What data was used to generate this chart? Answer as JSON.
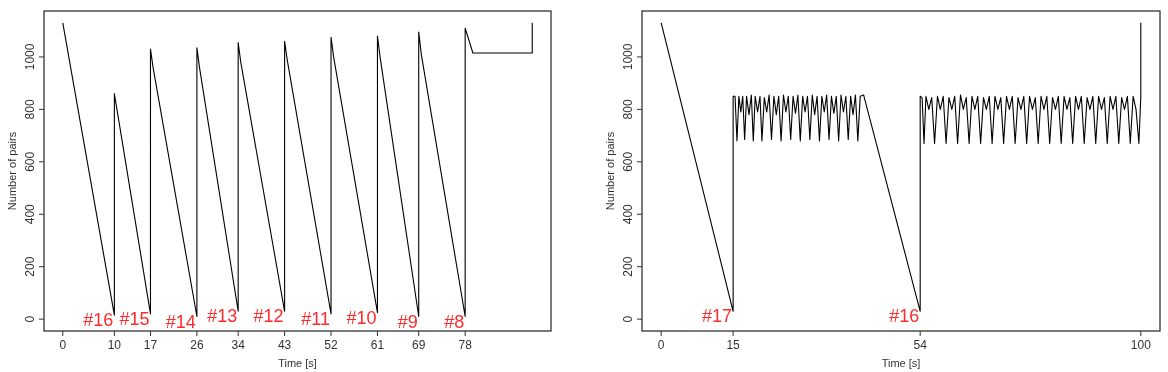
{
  "chart_data": [
    {
      "type": "line",
      "xlabel": "Time [s]",
      "ylabel": "Number of pairs",
      "xlim": [
        -3.64,
        94.64
      ],
      "ylim": [
        -45.2,
        1175.2
      ],
      "xticks": [
        0,
        10,
        17,
        26,
        34,
        43,
        52,
        61,
        69,
        78
      ],
      "yticks": [
        0,
        200,
        400,
        600,
        800,
        1000
      ],
      "series": [
        {
          "color": "#000000",
          "x": [
            0,
            10,
            10,
            10.5,
            17,
            17,
            17.5,
            26,
            26,
            26.5,
            34,
            34,
            34.5,
            43,
            43,
            43.5,
            52,
            52,
            52.5,
            61,
            61,
            61.5,
            69,
            69,
            69.5,
            78,
            78,
            79.5,
            91,
            91
          ],
          "values": [
            1130,
            15,
            860,
            800,
            20,
            1030,
            960,
            10,
            1035,
            960,
            30,
            1055,
            980,
            30,
            1060,
            990,
            20,
            1075,
            1000,
            25,
            1080,
            1000,
            10,
            1095,
            1010,
            10,
            1110,
            1015,
            1015,
            1130
          ]
        }
      ],
      "annotations": [
        {
          "text": "#16",
          "x": 10,
          "y": 15
        },
        {
          "text": "#15",
          "x": 17,
          "y": 20
        },
        {
          "text": "#14",
          "x": 26,
          "y": 10
        },
        {
          "text": "#13",
          "x": 34,
          "y": 30
        },
        {
          "text": "#12",
          "x": 43,
          "y": 30
        },
        {
          "text": "#11",
          "x": 52,
          "y": 20
        },
        {
          "text": "#10",
          "x": 61,
          "y": 25
        },
        {
          "text": "#9",
          "x": 69,
          "y": 10
        },
        {
          "text": "#8",
          "x": 78,
          "y": 10
        }
      ]
    },
    {
      "type": "line",
      "xlabel": "Time [s]",
      "ylabel": "Number of pairs",
      "xlim": [
        -4,
        104
      ],
      "ylim": [
        -45.2,
        1175.2
      ],
      "xticks": [
        0,
        15,
        54,
        100
      ],
      "yticks": [
        0,
        200,
        400,
        600,
        800,
        1000
      ],
      "series": [
        {
          "color": "#000000",
          "x": [
            0,
            15,
            15,
            15.4,
            15.8,
            16.2,
            16.6,
            17,
            17.4,
            17.8,
            18.3,
            18.8,
            19.2,
            19.6,
            20.1,
            20.6,
            21,
            21.5,
            22,
            22.5,
            23,
            23.5,
            24,
            24.5,
            25,
            25.5,
            26,
            26.5,
            27,
            27.5,
            28,
            28.5,
            29,
            29.5,
            30,
            30.5,
            31,
            31.5,
            32,
            32.5,
            33,
            33.5,
            34,
            34.5,
            35,
            35.5,
            36,
            36.5,
            37,
            37.5,
            38,
            38.5,
            39,
            39.5,
            40,
            40.5,
            41,
            41.5,
            42.2,
            54,
            54,
            54.4,
            54.8,
            55.2,
            55.8,
            56.4,
            57,
            57.6,
            58.2,
            58.8,
            59.4,
            60,
            60.6,
            61.2,
            61.8,
            62.4,
            63,
            63.6,
            64.2,
            64.8,
            65.4,
            66,
            66.6,
            67.2,
            67.8,
            68.4,
            69,
            69.6,
            70.2,
            70.8,
            71.4,
            72,
            72.6,
            73.2,
            73.8,
            74.4,
            75,
            75.6,
            76.2,
            76.8,
            77.4,
            78,
            78.6,
            79.2,
            79.8,
            80.4,
            81,
            81.6,
            82.2,
            82.8,
            83.4,
            84,
            84.6,
            85.2,
            85.8,
            86.4,
            87,
            87.6,
            88.2,
            88.8,
            89.4,
            90,
            90.6,
            91.2,
            91.8,
            92.4,
            93,
            93.6,
            94.2,
            94.8,
            95.4,
            96,
            96.6,
            97.2,
            97.8,
            98.4,
            99,
            99.6,
            100,
            100
          ],
          "values": [
            1130,
            30,
            850,
            850,
            680,
            850,
            790,
            850,
            685,
            850,
            780,
            855,
            680,
            850,
            790,
            850,
            680,
            845,
            790,
            855,
            685,
            850,
            780,
            850,
            680,
            855,
            790,
            850,
            685,
            850,
            785,
            855,
            680,
            850,
            790,
            850,
            685,
            855,
            780,
            850,
            680,
            850,
            790,
            855,
            685,
            850,
            785,
            850,
            680,
            855,
            790,
            850,
            685,
            850,
            780,
            855,
            680,
            850,
            855,
            30,
            850,
            845,
            670,
            850,
            800,
            845,
            670,
            850,
            800,
            850,
            670,
            845,
            800,
            850,
            670,
            855,
            800,
            845,
            670,
            850,
            800,
            850,
            670,
            845,
            800,
            850,
            670,
            850,
            800,
            845,
            670,
            850,
            800,
            850,
            670,
            845,
            800,
            850,
            670,
            850,
            800,
            845,
            670,
            850,
            800,
            850,
            670,
            845,
            800,
            850,
            670,
            850,
            800,
            845,
            670,
            850,
            800,
            850,
            670,
            845,
            800,
            850,
            670,
            850,
            800,
            845,
            670,
            850,
            800,
            850,
            670,
            845,
            800,
            850,
            670,
            850,
            800,
            670,
            850,
            1130
          ]
        }
      ],
      "annotations": [
        {
          "text": "#17",
          "x": 15,
          "y": 30
        },
        {
          "text": "#16",
          "x": 54,
          "y": 30
        }
      ]
    }
  ]
}
